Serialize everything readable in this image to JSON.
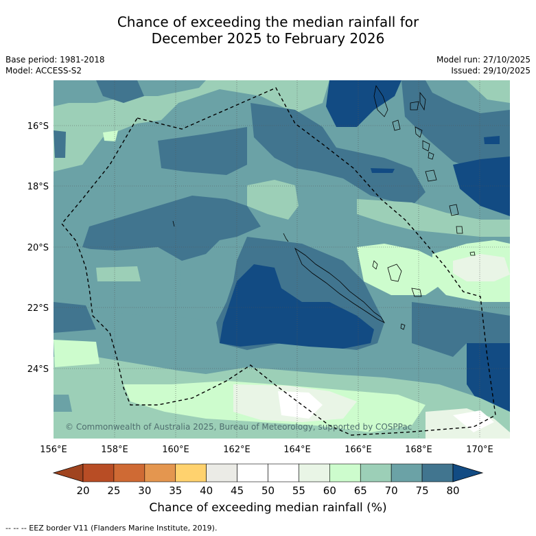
{
  "title": {
    "line1": "Chance of exceeding the median rainfall for",
    "line2": "December 2025 to February 2026"
  },
  "meta": {
    "base_period": "Base period: 1981-2018",
    "model": "Model: ACCESS-S2",
    "model_run": "Model run: 27/10/2025",
    "issued": "Issued: 29/10/2025"
  },
  "map": {
    "lat_labels": [
      "16°S",
      "18°S",
      "20°S",
      "22°S",
      "24°S"
    ],
    "lon_labels": [
      "156°E",
      "158°E",
      "160°E",
      "162°E",
      "164°E",
      "166°E",
      "168°E",
      "170°E"
    ],
    "watermark": "© Commonwealth of Australia 2025, Bureau of Meteorology, supported by COSPPac"
  },
  "colorbar": {
    "tick_labels": [
      "20",
      "25",
      "30",
      "35",
      "40",
      "45",
      "50",
      "55",
      "60",
      "65",
      "70",
      "75",
      "80"
    ],
    "colors": [
      "#a0441f",
      "#b84d25",
      "#cf6a34",
      "#e4964f",
      "#ffd26e",
      "#ebebe6",
      "#ffffff",
      "#ffffff",
      "#e9f5e6",
      "#cdfccd",
      "#9ccfb7",
      "#6ba2a6",
      "#41758f",
      "#124b83"
    ],
    "title": "Chance of exceeding median rainfall (%)"
  },
  "footnote": "--  --  -- EEZ border V11 (Flanders Marine Institute, 2019)."
}
